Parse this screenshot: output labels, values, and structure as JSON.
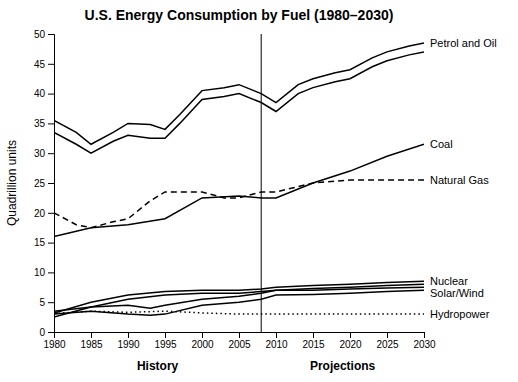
{
  "chart_data": {
    "type": "line",
    "title": "U.S. Energy Consumption by Fuel (1980–2030)",
    "y_label": "Quadrillion units",
    "annotations": [
      "History",
      "Projections"
    ],
    "projection_start": 2008,
    "xlim": [
      1980,
      2030
    ],
    "xticks": [
      1980,
      1985,
      1990,
      1995,
      2000,
      2005,
      2010,
      2015,
      2020,
      2025,
      2030
    ],
    "ylim": [
      0,
      50
    ],
    "yticks": [
      0,
      5,
      10,
      15,
      20,
      25,
      30,
      35,
      40,
      45,
      50
    ],
    "grid": false,
    "series": [
      {
        "name": "Petrol and Oil",
        "color": "#000000",
        "line_style": "solid",
        "x": [
          1980,
          1983,
          1985,
          1988,
          1990,
          1993,
          1995,
          1997,
          2000,
          2003,
          2005,
          2008,
          2010,
          2013,
          2015,
          2018,
          2020,
          2023,
          2025,
          2028,
          2030
        ],
        "values": [
          35.5,
          33.5,
          31.5,
          33.5,
          35.0,
          34.8,
          34.0,
          36.5,
          40.5,
          41.0,
          41.5,
          40.0,
          38.5,
          41.5,
          42.5,
          43.5,
          44.0,
          46.0,
          47.0,
          48.0,
          48.5
        ]
      },
      {
        "color": "#000000",
        "line_style": "solid",
        "x": [
          1980,
          1983,
          1985,
          1988,
          1990,
          1993,
          1995,
          1997,
          2000,
          2003,
          2005,
          2008,
          2010,
          2013,
          2015,
          2018,
          2020,
          2023,
          2025,
          2028,
          2030
        ],
        "values": [
          33.5,
          31.5,
          30.0,
          32.0,
          33.0,
          32.5,
          32.5,
          35.0,
          39.0,
          39.5,
          40.0,
          38.5,
          37.0,
          40.0,
          41.0,
          42.0,
          42.5,
          44.5,
          45.5,
          46.5,
          47.0
        ]
      },
      {
        "name": "Coal",
        "color": "#000000",
        "line_style": "solid",
        "x": [
          1980,
          1985,
          1990,
          1995,
          2000,
          2005,
          2008,
          2010,
          2015,
          2020,
          2025,
          2030
        ],
        "values": [
          16.0,
          17.5,
          18.0,
          19.0,
          22.5,
          22.8,
          22.5,
          22.5,
          25.0,
          27.0,
          29.5,
          31.5
        ]
      },
      {
        "name": "Natural Gas",
        "color": "#000000",
        "line_style": "dashed",
        "x": [
          1980,
          1983,
          1985,
          1988,
          1990,
          1993,
          1995,
          1997,
          2000,
          2003,
          2005,
          2008,
          2010,
          2015,
          2020,
          2025,
          2030
        ],
        "values": [
          20.0,
          18.0,
          17.5,
          18.5,
          19.0,
          22.0,
          23.5,
          23.5,
          23.5,
          22.5,
          22.5,
          23.5,
          23.5,
          25.0,
          25.5,
          25.5,
          25.5
        ]
      },
      {
        "name": "Nuclear",
        "color": "#000000",
        "line_style": "solid",
        "x": [
          1980,
          1985,
          1990,
          1995,
          2000,
          2005,
          2008,
          2010,
          2015,
          2020,
          2025,
          2030
        ],
        "values": [
          3.2,
          5.0,
          6.2,
          6.8,
          7.0,
          7.0,
          7.2,
          7.5,
          7.8,
          8.0,
          8.3,
          8.5
        ]
      },
      {
        "color": "#000000",
        "line_style": "solid",
        "x": [
          1980,
          1985,
          1990,
          1995,
          2000,
          2005,
          2008,
          2010,
          2015,
          2020,
          2025,
          2030
        ],
        "values": [
          2.5,
          4.2,
          5.5,
          6.2,
          6.5,
          6.5,
          6.8,
          7.0,
          7.3,
          7.5,
          7.8,
          8.0
        ]
      },
      {
        "name": "Solar/Wind",
        "color": "#000000",
        "line_style": "solid",
        "x": [
          1980,
          1985,
          1990,
          1993,
          1995,
          2000,
          2005,
          2008,
          2010,
          2015,
          2020,
          2025,
          2030
        ],
        "values": [
          3.5,
          4.2,
          4.5,
          4.0,
          4.5,
          5.5,
          6.0,
          6.5,
          7.0,
          7.0,
          7.2,
          7.4,
          7.5
        ]
      },
      {
        "color": "#000000",
        "line_style": "solid",
        "x": [
          1980,
          1985,
          1990,
          1993,
          1995,
          2000,
          2005,
          2008,
          2010,
          2015,
          2020,
          2025,
          2030
        ],
        "values": [
          3.0,
          3.5,
          3.0,
          2.8,
          3.0,
          4.5,
          5.0,
          5.5,
          6.2,
          6.3,
          6.5,
          6.8,
          7.0
        ]
      },
      {
        "name": "Hydropower",
        "color": "#000000",
        "line_style": "dotted",
        "x": [
          1980,
          1985,
          1990,
          1995,
          2000,
          2005,
          2008,
          2010,
          2015,
          2020,
          2025,
          2030
        ],
        "values": [
          3.1,
          3.5,
          3.3,
          3.5,
          3.2,
          3.0,
          3.0,
          3.0,
          3.0,
          3.0,
          3.0,
          3.0
        ]
      }
    ]
  }
}
